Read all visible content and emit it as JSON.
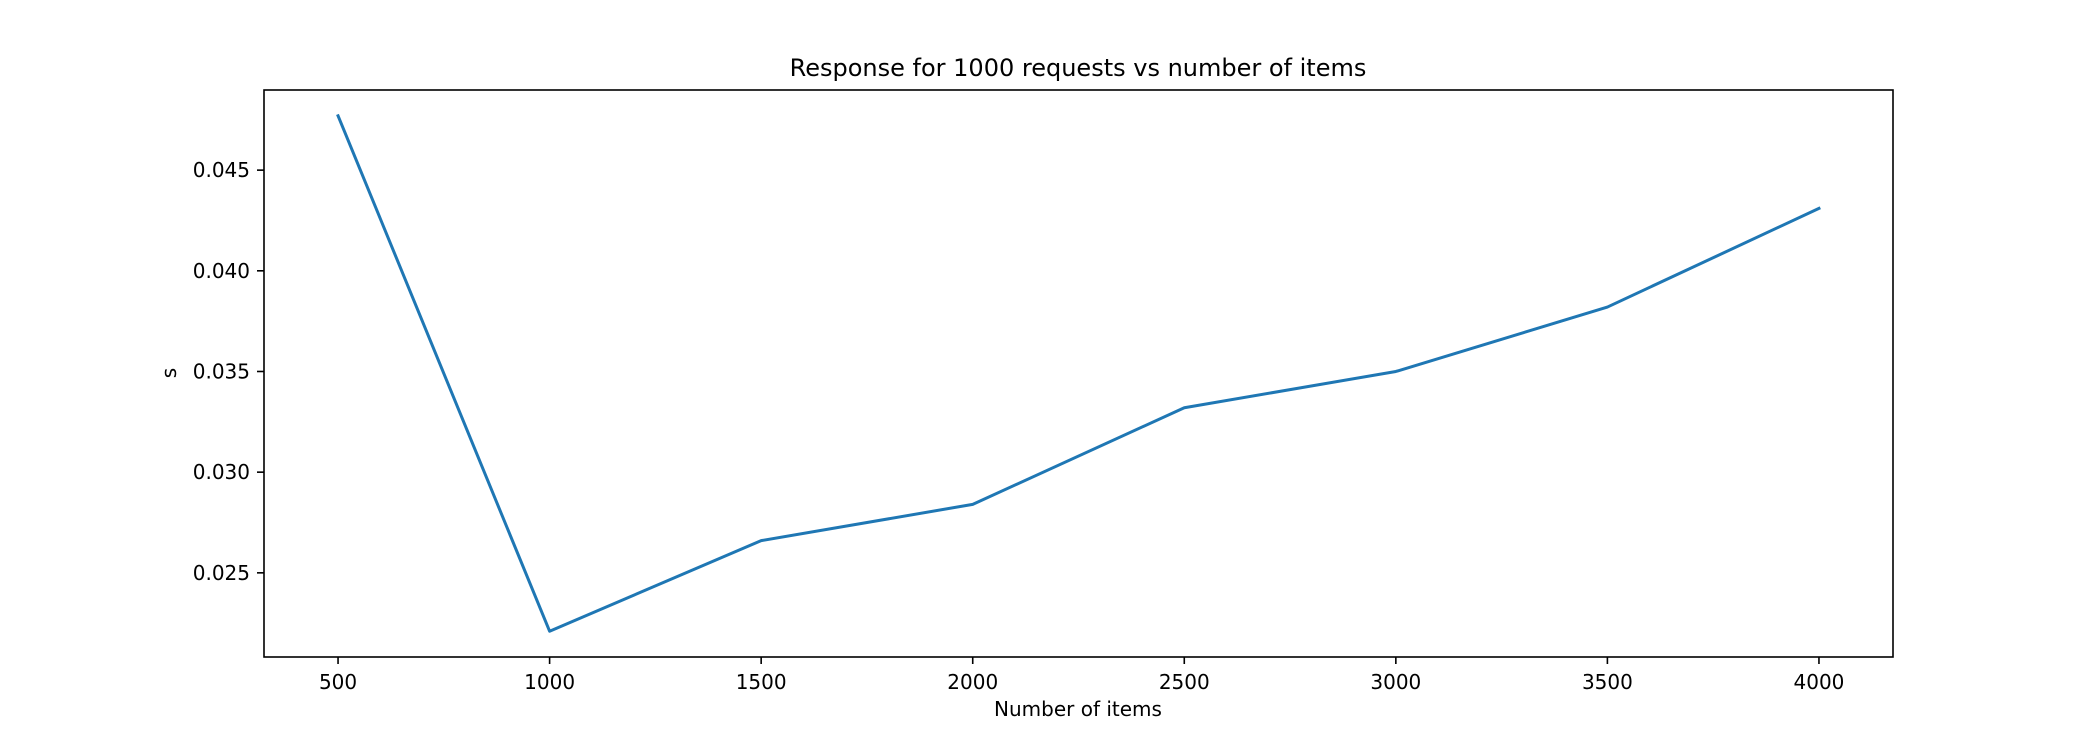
{
  "chart_data": {
    "type": "line",
    "title": "Response for 1000 requests vs number of items",
    "xlabel": "Number of items",
    "ylabel": "s",
    "x": [
      500,
      1000,
      1500,
      2000,
      2500,
      3000,
      3500,
      4000
    ],
    "series": [
      {
        "values": [
          0.0477,
          0.0221,
          0.0266,
          0.0284,
          0.0332,
          0.035,
          0.0382,
          0.0431
        ],
        "color": "#1f77b4"
      }
    ],
    "xticks": [
      500,
      1000,
      1500,
      2000,
      2500,
      3000,
      3500,
      4000
    ],
    "xtick_labels": [
      "500",
      "1000",
      "1500",
      "2000",
      "2500",
      "3000",
      "3500",
      "4000"
    ],
    "yticks": [
      0.025,
      0.03,
      0.035,
      0.04,
      0.045
    ],
    "ytick_labels": [
      "0.025",
      "0.030",
      "0.035",
      "0.040",
      "0.045"
    ],
    "xlim": [
      325,
      4175
    ],
    "ylim": [
      0.02082,
      0.04898
    ],
    "grid": false,
    "legend": "none"
  }
}
